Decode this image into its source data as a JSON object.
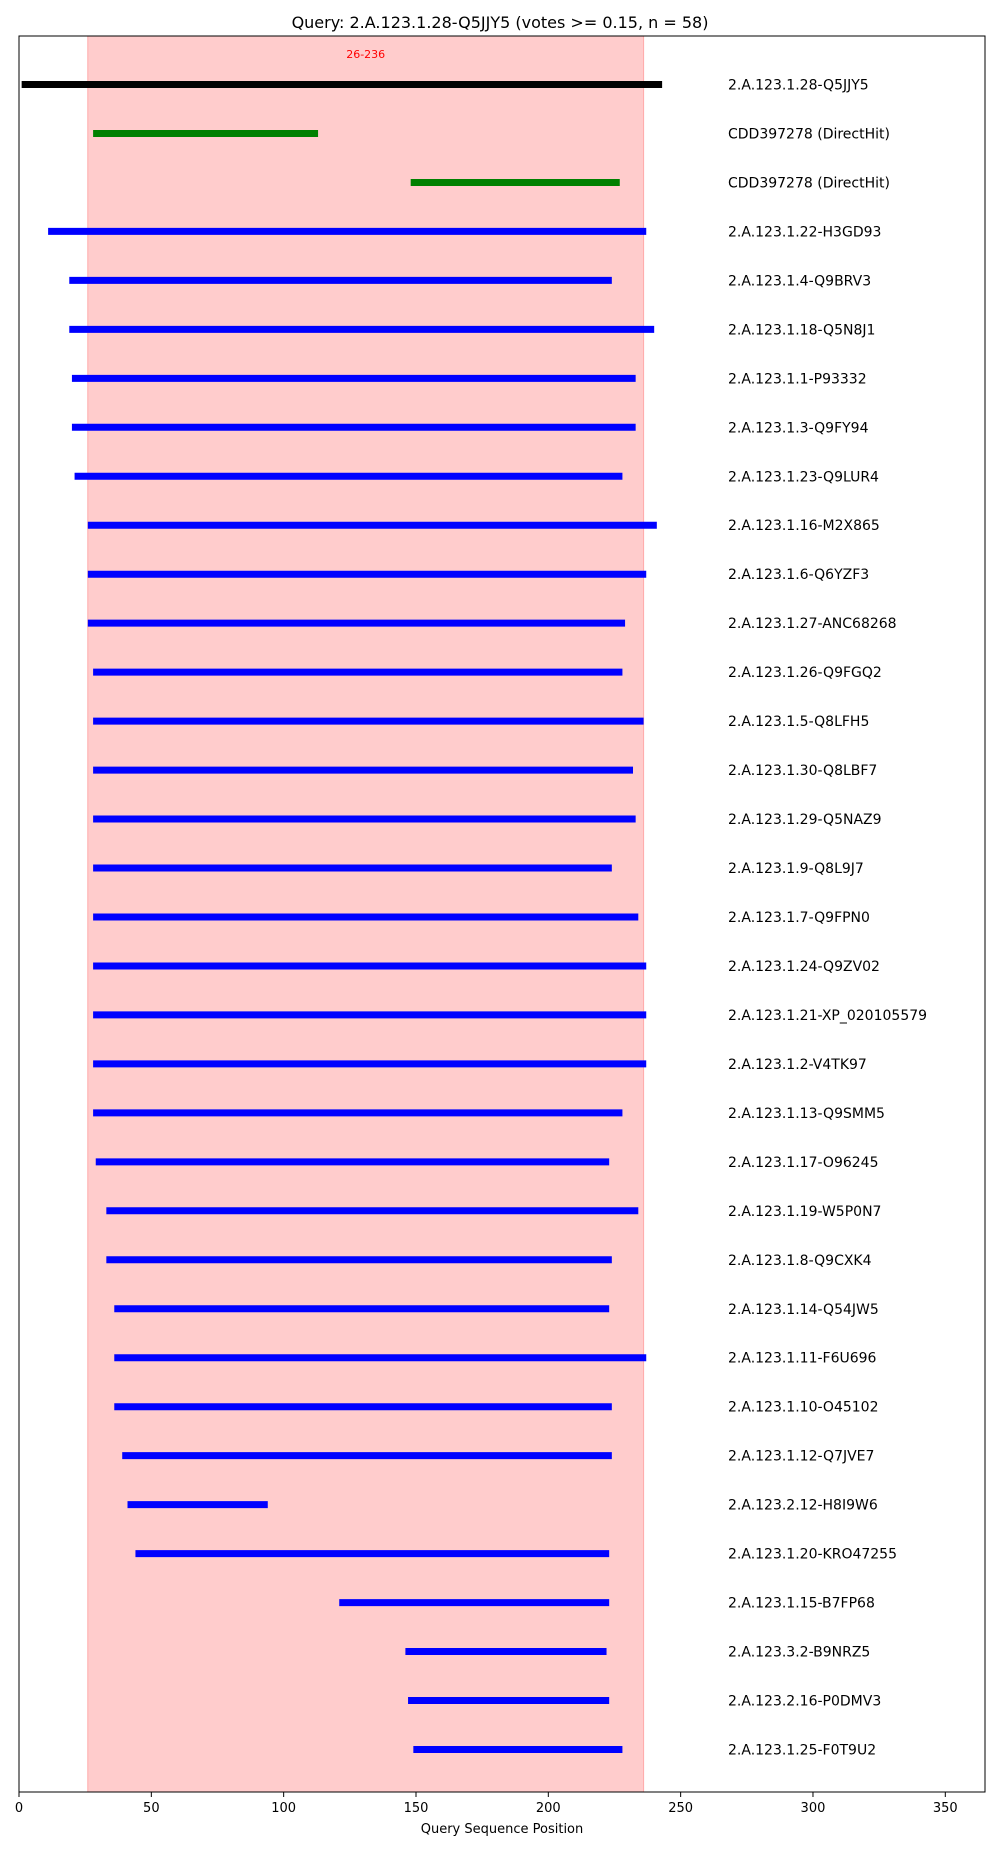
{
  "chart_data": {
    "type": "interval",
    "title": "Query: 2.A.123.1.28-Q5JJY5 (votes >= 0.15, n = 58)",
    "xlabel": "Query Sequence Position",
    "ylabel": "",
    "xlim": [
      0,
      365
    ],
    "xticks": [
      "0",
      "50",
      "100",
      "150",
      "200",
      "250",
      "300",
      "350"
    ],
    "xtick_values": [
      0,
      50,
      100,
      150,
      200,
      250,
      300,
      350
    ],
    "region": {
      "start": 26,
      "end": 236,
      "label": "26-236",
      "color": "#ffcccc"
    },
    "colors": {
      "query": "#000000",
      "directhit": "#008000",
      "hit": "#0000ff",
      "region_label": "#ff0000"
    },
    "segments": [
      {
        "label": "2.A.123.1.28-Q5JJY5",
        "start": 1,
        "end": 243,
        "kind": "query"
      },
      {
        "label": "CDD397278 (DirectHit)",
        "start": 28,
        "end": 113,
        "kind": "directhit"
      },
      {
        "label": "CDD397278 (DirectHit)",
        "start": 148,
        "end": 227,
        "kind": "directhit"
      },
      {
        "label": "2.A.123.1.22-H3GD93",
        "start": 11,
        "end": 237,
        "kind": "hit"
      },
      {
        "label": "2.A.123.1.4-Q9BRV3",
        "start": 19,
        "end": 224,
        "kind": "hit"
      },
      {
        "label": "2.A.123.1.18-Q5N8J1",
        "start": 19,
        "end": 240,
        "kind": "hit"
      },
      {
        "label": "2.A.123.1.1-P93332",
        "start": 20,
        "end": 233,
        "kind": "hit"
      },
      {
        "label": "2.A.123.1.3-Q9FY94",
        "start": 20,
        "end": 233,
        "kind": "hit"
      },
      {
        "label": "2.A.123.1.23-Q9LUR4",
        "start": 21,
        "end": 228,
        "kind": "hit"
      },
      {
        "label": "2.A.123.1.16-M2X865",
        "start": 26,
        "end": 241,
        "kind": "hit"
      },
      {
        "label": "2.A.123.1.6-Q6YZF3",
        "start": 26,
        "end": 237,
        "kind": "hit"
      },
      {
        "label": "2.A.123.1.27-ANC68268",
        "start": 26,
        "end": 229,
        "kind": "hit"
      },
      {
        "label": "2.A.123.1.26-Q9FGQ2",
        "start": 28,
        "end": 228,
        "kind": "hit"
      },
      {
        "label": "2.A.123.1.5-Q8LFH5",
        "start": 28,
        "end": 236,
        "kind": "hit"
      },
      {
        "label": "2.A.123.1.30-Q8LBF7",
        "start": 28,
        "end": 232,
        "kind": "hit"
      },
      {
        "label": "2.A.123.1.29-Q5NAZ9",
        "start": 28,
        "end": 233,
        "kind": "hit"
      },
      {
        "label": "2.A.123.1.9-Q8L9J7",
        "start": 28,
        "end": 224,
        "kind": "hit"
      },
      {
        "label": "2.A.123.1.7-Q9FPN0",
        "start": 28,
        "end": 234,
        "kind": "hit"
      },
      {
        "label": "2.A.123.1.24-Q9ZV02",
        "start": 28,
        "end": 237,
        "kind": "hit"
      },
      {
        "label": "2.A.123.1.21-XP_020105579",
        "start": 28,
        "end": 237,
        "kind": "hit"
      },
      {
        "label": "2.A.123.1.2-V4TK97",
        "start": 28,
        "end": 237,
        "kind": "hit"
      },
      {
        "label": "2.A.123.1.13-Q9SMM5",
        "start": 28,
        "end": 228,
        "kind": "hit"
      },
      {
        "label": "2.A.123.1.17-O96245",
        "start": 29,
        "end": 223,
        "kind": "hit"
      },
      {
        "label": "2.A.123.1.19-W5P0N7",
        "start": 33,
        "end": 234,
        "kind": "hit"
      },
      {
        "label": "2.A.123.1.8-Q9CXK4",
        "start": 33,
        "end": 224,
        "kind": "hit"
      },
      {
        "label": "2.A.123.1.14-Q54JW5",
        "start": 36,
        "end": 223,
        "kind": "hit"
      },
      {
        "label": "2.A.123.1.11-F6U696",
        "start": 36,
        "end": 237,
        "kind": "hit"
      },
      {
        "label": "2.A.123.1.10-O45102",
        "start": 36,
        "end": 224,
        "kind": "hit"
      },
      {
        "label": "2.A.123.1.12-Q7JVE7",
        "start": 39,
        "end": 224,
        "kind": "hit"
      },
      {
        "label": "2.A.123.2.12-H8I9W6",
        "start": 41,
        "end": 94,
        "kind": "hit"
      },
      {
        "label": "2.A.123.1.20-KRO47255",
        "start": 44,
        "end": 223,
        "kind": "hit"
      },
      {
        "label": "2.A.123.1.15-B7FP68",
        "start": 121,
        "end": 223,
        "kind": "hit"
      },
      {
        "label": "2.A.123.3.2-B9NRZ5",
        "start": 146,
        "end": 222,
        "kind": "hit"
      },
      {
        "label": "2.A.123.2.16-P0DMV3",
        "start": 147,
        "end": 223,
        "kind": "hit"
      },
      {
        "label": "2.A.123.1.25-F0T9U2",
        "start": 149,
        "end": 228,
        "kind": "hit"
      }
    ]
  }
}
